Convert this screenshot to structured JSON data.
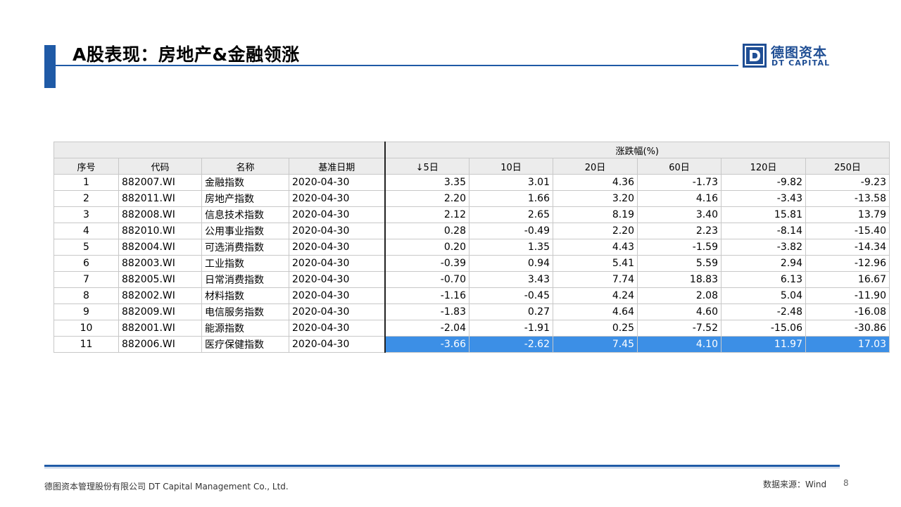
{
  "header": {
    "title": "A股表现：房地产&金融领涨",
    "brand_color": "#1f5aa6"
  },
  "logo": {
    "name_cn": "德图资本",
    "name_en": "DT CAPITAL"
  },
  "table": {
    "group_header": "涨跌幅(%)",
    "columns": [
      "序号",
      "代码",
      "名称",
      "基准日期",
      "↓5日",
      "10日",
      "20日",
      "60日",
      "120日",
      "250日"
    ],
    "rows": [
      {
        "no": "1",
        "code": "882007.WI",
        "name": "金融指数",
        "date": "2020-04-30",
        "v": [
          "3.35",
          "3.01",
          "4.36",
          "-1.73",
          "-9.82",
          "-9.23"
        ]
      },
      {
        "no": "2",
        "code": "882011.WI",
        "name": "房地产指数",
        "date": "2020-04-30",
        "v": [
          "2.20",
          "1.66",
          "3.20",
          "4.16",
          "-3.43",
          "-13.58"
        ]
      },
      {
        "no": "3",
        "code": "882008.WI",
        "name": "信息技术指数",
        "date": "2020-04-30",
        "v": [
          "2.12",
          "2.65",
          "8.19",
          "3.40",
          "15.81",
          "13.79"
        ]
      },
      {
        "no": "4",
        "code": "882010.WI",
        "name": "公用事业指数",
        "date": "2020-04-30",
        "v": [
          "0.28",
          "-0.49",
          "2.20",
          "2.23",
          "-8.14",
          "-15.40"
        ]
      },
      {
        "no": "5",
        "code": "882004.WI",
        "name": "可选消费指数",
        "date": "2020-04-30",
        "v": [
          "0.20",
          "1.35",
          "4.43",
          "-1.59",
          "-3.82",
          "-14.34"
        ]
      },
      {
        "no": "6",
        "code": "882003.WI",
        "name": "工业指数",
        "date": "2020-04-30",
        "v": [
          "-0.39",
          "0.94",
          "5.41",
          "5.59",
          "2.94",
          "-12.96"
        ]
      },
      {
        "no": "7",
        "code": "882005.WI",
        "name": "日常消费指数",
        "date": "2020-04-30",
        "v": [
          "-0.70",
          "3.43",
          "7.74",
          "18.83",
          "6.13",
          "16.67"
        ]
      },
      {
        "no": "8",
        "code": "882002.WI",
        "name": "材料指数",
        "date": "2020-04-30",
        "v": [
          "-1.16",
          "-0.45",
          "4.24",
          "2.08",
          "5.04",
          "-11.90"
        ]
      },
      {
        "no": "9",
        "code": "882009.WI",
        "name": "电信服务指数",
        "date": "2020-04-30",
        "v": [
          "-1.83",
          "0.27",
          "4.64",
          "4.60",
          "-2.48",
          "-16.08"
        ]
      },
      {
        "no": "10",
        "code": "882001.WI",
        "name": "能源指数",
        "date": "2020-04-30",
        "v": [
          "-2.04",
          "-1.91",
          "0.25",
          "-7.52",
          "-15.06",
          "-30.86"
        ]
      },
      {
        "no": "11",
        "code": "882006.WI",
        "name": "医疗保健指数",
        "date": "2020-04-30",
        "v": [
          "-3.66",
          "-2.62",
          "7.45",
          "4.10",
          "11.97",
          "17.03"
        ]
      }
    ],
    "highlight_color": "#3c8fe6"
  },
  "footer": {
    "company": "德图资本管理股份有限公司  DT Capital  Management  Co., Ltd.",
    "source": "数据来源：Wind",
    "page": "8"
  }
}
